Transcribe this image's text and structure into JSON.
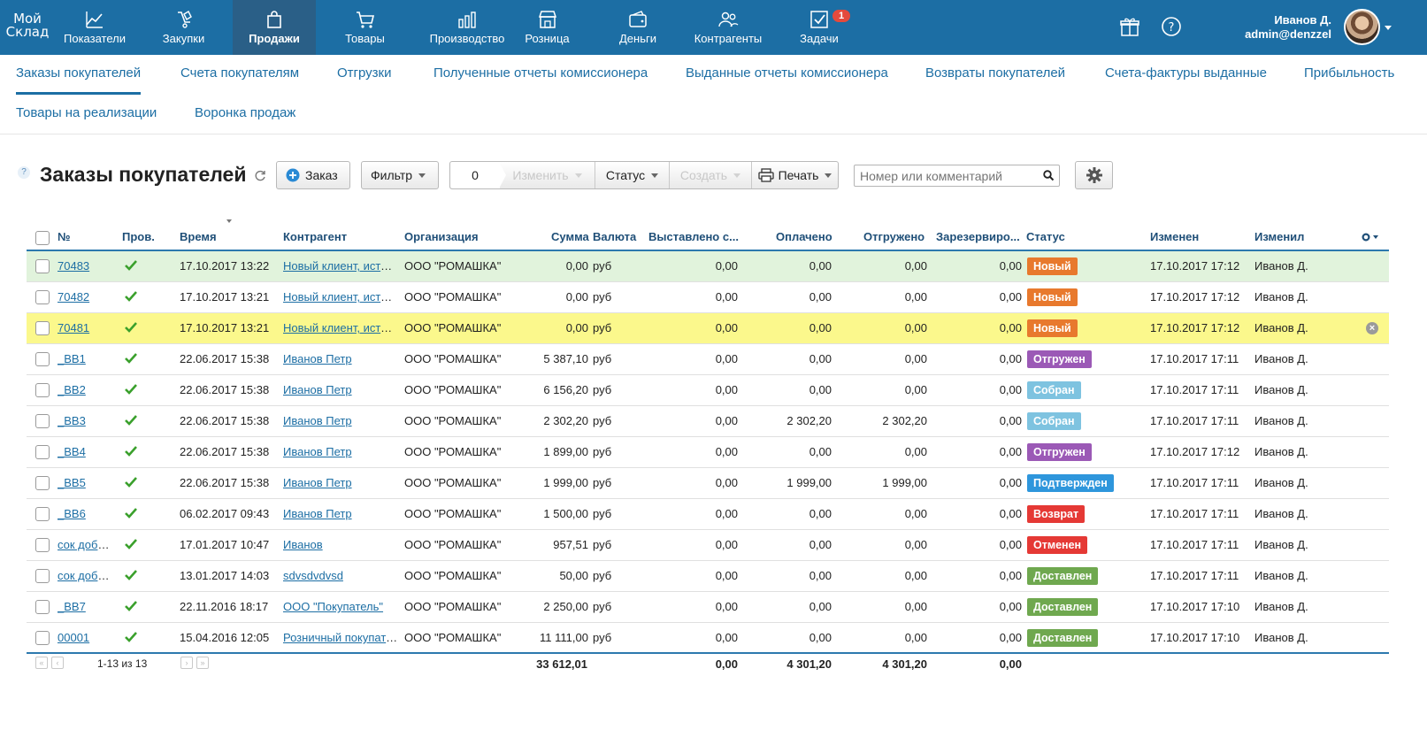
{
  "brand": {
    "logo_line1": "Мой",
    "logo_line2": "Склад"
  },
  "nav": [
    {
      "label": "Показатели",
      "icon": "chart-icon",
      "left": 0
    },
    {
      "label": "Закупки",
      "icon": "purchases-icon"
    },
    {
      "label": "Продажи",
      "icon": "bag-icon",
      "active": true
    },
    {
      "label": "Товары",
      "icon": "cart-icon"
    },
    {
      "label": "Производство",
      "icon": "factory-icon"
    },
    {
      "label": "Розница",
      "icon": "store-icon"
    },
    {
      "label": "Деньги",
      "icon": "wallet-icon"
    },
    {
      "label": "Контрагенты",
      "icon": "contacts-icon"
    },
    {
      "label": "Задачи",
      "icon": "tasks-icon",
      "badge": "1"
    }
  ],
  "user": {
    "name": "Иванов Д.",
    "login": "admin@denzzel"
  },
  "subtabs": [
    "Заказы покупателей",
    "Счета покупателям",
    "Отгрузки",
    "Полученные отчеты комиссионера",
    "Выданные отчеты комиссионера",
    "Возвраты покупателей",
    "Счета-фактуры выданные",
    "Прибыльность",
    "Товары на реализации",
    "Воронка продаж"
  ],
  "toolbar": {
    "help": "?",
    "title": "Заказы покупателей",
    "order_button": "Заказ",
    "filter_button": "Фильтр",
    "selected_count": "0",
    "change_button": "Изменить",
    "status_button": "Статус",
    "create_button": "Создать",
    "print_button": "Печать",
    "search_placeholder": "Номер или комментарий"
  },
  "table": {
    "columns": [
      "№",
      "Пров.",
      "Время",
      "Контрагент",
      "Организация",
      "Сумма",
      "Валюта",
      "Выставлено с...",
      "Оплачено",
      "Отгружено",
      "Зарезервиро...",
      "Статус",
      "Изменен",
      "Изменил"
    ],
    "rows": [
      {
        "num": "70483",
        "time": "17.10.2017 13:22",
        "agent": "Новый клиент, источ...",
        "org": "ООО \"РОМАШКА\"",
        "sum": "0,00",
        "cur": "руб",
        "invoiced": "0,00",
        "paid": "0,00",
        "shipped": "0,00",
        "reserved": "0,00",
        "status": "Новый",
        "status_color": "#e8792d",
        "changed": "17.10.2017 17:12",
        "by": "Иванов Д.",
        "hl": "green"
      },
      {
        "num": "70482",
        "time": "17.10.2017 13:21",
        "agent": "Новый клиент, источ...",
        "org": "ООО \"РОМАШКА\"",
        "sum": "0,00",
        "cur": "руб",
        "invoiced": "0,00",
        "paid": "0,00",
        "shipped": "0,00",
        "reserved": "0,00",
        "status": "Новый",
        "status_color": "#e8792d",
        "changed": "17.10.2017 17:12",
        "by": "Иванов Д."
      },
      {
        "num": "70481",
        "time": "17.10.2017 13:21",
        "agent": "Новый клиент, источ...",
        "org": "ООО \"РОМАШКА\"",
        "sum": "0,00",
        "cur": "руб",
        "invoiced": "0,00",
        "paid": "0,00",
        "shipped": "0,00",
        "reserved": "0,00",
        "status": "Новый",
        "status_color": "#e8792d",
        "changed": "17.10.2017 17:12",
        "by": "Иванов Д.",
        "hl": "yellow",
        "delete": "×"
      },
      {
        "num": "_BB1",
        "time": "22.06.2017 15:38",
        "agent": "Иванов Петр",
        "org": "ООО \"РОМАШКА\"",
        "sum": "5 387,10",
        "cur": "руб",
        "invoiced": "0,00",
        "paid": "0,00",
        "shipped": "0,00",
        "reserved": "0,00",
        "status": "Отгружен",
        "status_color": "#9b59b6",
        "changed": "17.10.2017 17:11",
        "by": "Иванов Д."
      },
      {
        "num": "_BB2",
        "time": "22.06.2017 15:38",
        "agent": "Иванов Петр",
        "org": "ООО \"РОМАШКА\"",
        "sum": "6 156,20",
        "cur": "руб",
        "invoiced": "0,00",
        "paid": "0,00",
        "shipped": "0,00",
        "reserved": "0,00",
        "status": "Собран",
        "status_color": "#7ec3e0",
        "changed": "17.10.2017 17:11",
        "by": "Иванов Д."
      },
      {
        "num": "_BB3",
        "time": "22.06.2017 15:38",
        "agent": "Иванов Петр",
        "org": "ООО \"РОМАШКА\"",
        "sum": "2 302,20",
        "cur": "руб",
        "invoiced": "0,00",
        "paid": "2 302,20",
        "shipped": "2 302,20",
        "reserved": "0,00",
        "status": "Собран",
        "status_color": "#7ec3e0",
        "changed": "17.10.2017 17:11",
        "by": "Иванов Д."
      },
      {
        "num": "_BB4",
        "time": "22.06.2017 15:38",
        "agent": "Иванов Петр",
        "org": "ООО \"РОМАШКА\"",
        "sum": "1 899,00",
        "cur": "руб",
        "invoiced": "0,00",
        "paid": "0,00",
        "shipped": "0,00",
        "reserved": "0,00",
        "status": "Отгружен",
        "status_color": "#9b59b6",
        "changed": "17.10.2017 17:12",
        "by": "Иванов Д."
      },
      {
        "num": "_BB5",
        "time": "22.06.2017 15:38",
        "agent": "Иванов Петр",
        "org": "ООО \"РОМАШКА\"",
        "sum": "1 999,00",
        "cur": "руб",
        "invoiced": "0,00",
        "paid": "1 999,00",
        "shipped": "1 999,00",
        "reserved": "0,00",
        "status": "Подтвержден",
        "status_color": "#2e96dc",
        "changed": "17.10.2017 17:11",
        "by": "Иванов Д."
      },
      {
        "num": "_BB6",
        "time": "06.02.2017 09:43",
        "agent": "Иванов Петр",
        "org": "ООО \"РОМАШКА\"",
        "sum": "1 500,00",
        "cur": "руб",
        "invoiced": "0,00",
        "paid": "0,00",
        "shipped": "0,00",
        "reserved": "0,00",
        "status": "Возврат",
        "status_color": "#e53935",
        "changed": "17.10.2017 17:11",
        "by": "Иванов Д."
      },
      {
        "num": "сок добр...",
        "time": "17.01.2017 10:47",
        "agent": "Иванов",
        "org": "ООО \"РОМАШКА\"",
        "sum": "957,51",
        "cur": "руб",
        "invoiced": "0,00",
        "paid": "0,00",
        "shipped": "0,00",
        "reserved": "0,00",
        "status": "Отменен",
        "status_color": "#e53935",
        "changed": "17.10.2017 17:11",
        "by": "Иванов Д."
      },
      {
        "num": "сок добр...",
        "time": "13.01.2017 14:03",
        "agent": "sdvsdvdvsd",
        "org": "ООО \"РОМАШКА\"",
        "sum": "50,00",
        "cur": "руб",
        "invoiced": "0,00",
        "paid": "0,00",
        "shipped": "0,00",
        "reserved": "0,00",
        "status": "Доставлен",
        "status_color": "#6fa84f",
        "changed": "17.10.2017 17:11",
        "by": "Иванов Д."
      },
      {
        "num": "_BB7",
        "time": "22.11.2016 18:17",
        "agent": "ООО \"Покупатель\"",
        "org": "ООО \"РОМАШКА\"",
        "sum": "2 250,00",
        "cur": "руб",
        "invoiced": "0,00",
        "paid": "0,00",
        "shipped": "0,00",
        "reserved": "0,00",
        "status": "Доставлен",
        "status_color": "#6fa84f",
        "changed": "17.10.2017 17:10",
        "by": "Иванов Д."
      },
      {
        "num": "00001",
        "time": "15.04.2016 12:05",
        "agent": "Розничный покупате...",
        "org": "ООО \"РОМАШКА\"",
        "sum": "11 111,00",
        "cur": "руб",
        "invoiced": "0,00",
        "paid": "0,00",
        "shipped": "0,00",
        "reserved": "0,00",
        "status": "Доставлен",
        "status_color": "#6fa84f",
        "changed": "17.10.2017 17:10",
        "by": "Иванов Д."
      }
    ]
  },
  "footer": {
    "range": "1-13 из 13",
    "total_sum": "33 612,01",
    "total_invoiced": "0,00",
    "total_paid": "4 301,20",
    "total_shipped": "4 301,20",
    "total_reserved": "0,00"
  },
  "colors": {
    "brand_blue": "#1c6ea4",
    "nav_active": "#2a5f87",
    "check_green": "#3aa02c"
  }
}
